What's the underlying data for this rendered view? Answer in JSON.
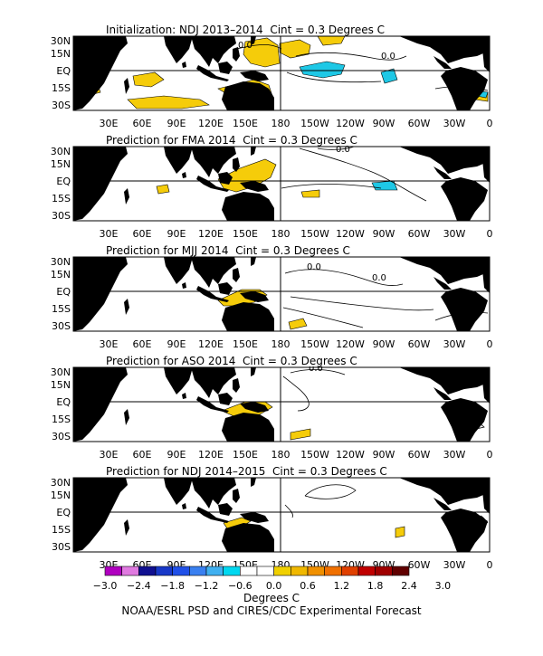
{
  "lat_labels": [
    "30N",
    "15N",
    "EQ",
    "15S",
    "30S"
  ],
  "lon_labels": [
    "30E",
    "60E",
    "90E",
    "120E",
    "150E",
    "180",
    "150W",
    "120W",
    "90W",
    "60W",
    "30W",
    "0"
  ],
  "panels": [
    {
      "title": "Initialization: NDJ 2013–2014  Cint = 0.3 Degrees C",
      "contour_labels": [
        "0.0",
        "0.0"
      ]
    },
    {
      "title": "Prediction for FMA 2014  Cint = 0.3 Degrees C",
      "contour_labels": [
        "0.0"
      ]
    },
    {
      "title": "Prediction for MJJ 2014  Cint = 0.3 Degrees C",
      "contour_labels": [
        "0.0",
        "0.0"
      ]
    },
    {
      "title": "Prediction for ASO 2014  Cint = 0.3 Degrees C",
      "contour_labels": [
        "0.0"
      ]
    },
    {
      "title": "Prediction for NDJ 2014–2015  Cint = 0.3 Degrees C",
      "contour_labels": []
    }
  ],
  "legend": {
    "labels": [
      "−3.0",
      "−2.4",
      "−1.8",
      "−1.2",
      "−0.6",
      "0.0",
      "0.6",
      "1.2",
      "1.8",
      "2.4",
      "3.0"
    ],
    "colors": [
      "#b000c0",
      "#e07ae0",
      "#101090",
      "#1838c8",
      "#2050e8",
      "#3a80f0",
      "#40b0f0",
      "#00d8f0",
      "#ffffff",
      "#ffffff",
      "#f0d000",
      "#f0b800",
      "#f09000",
      "#f07000",
      "#e04000",
      "#c00000",
      "#a00000",
      "#600000"
    ],
    "title": "Degrees C"
  },
  "credit": "NOAA/ESRL PSD and CIRES/CDC Experimental Forecast",
  "colors": {
    "land": "#000000",
    "warm": "#f5cc0a",
    "cool": "#1ec8e6",
    "contour": "#000000"
  }
}
